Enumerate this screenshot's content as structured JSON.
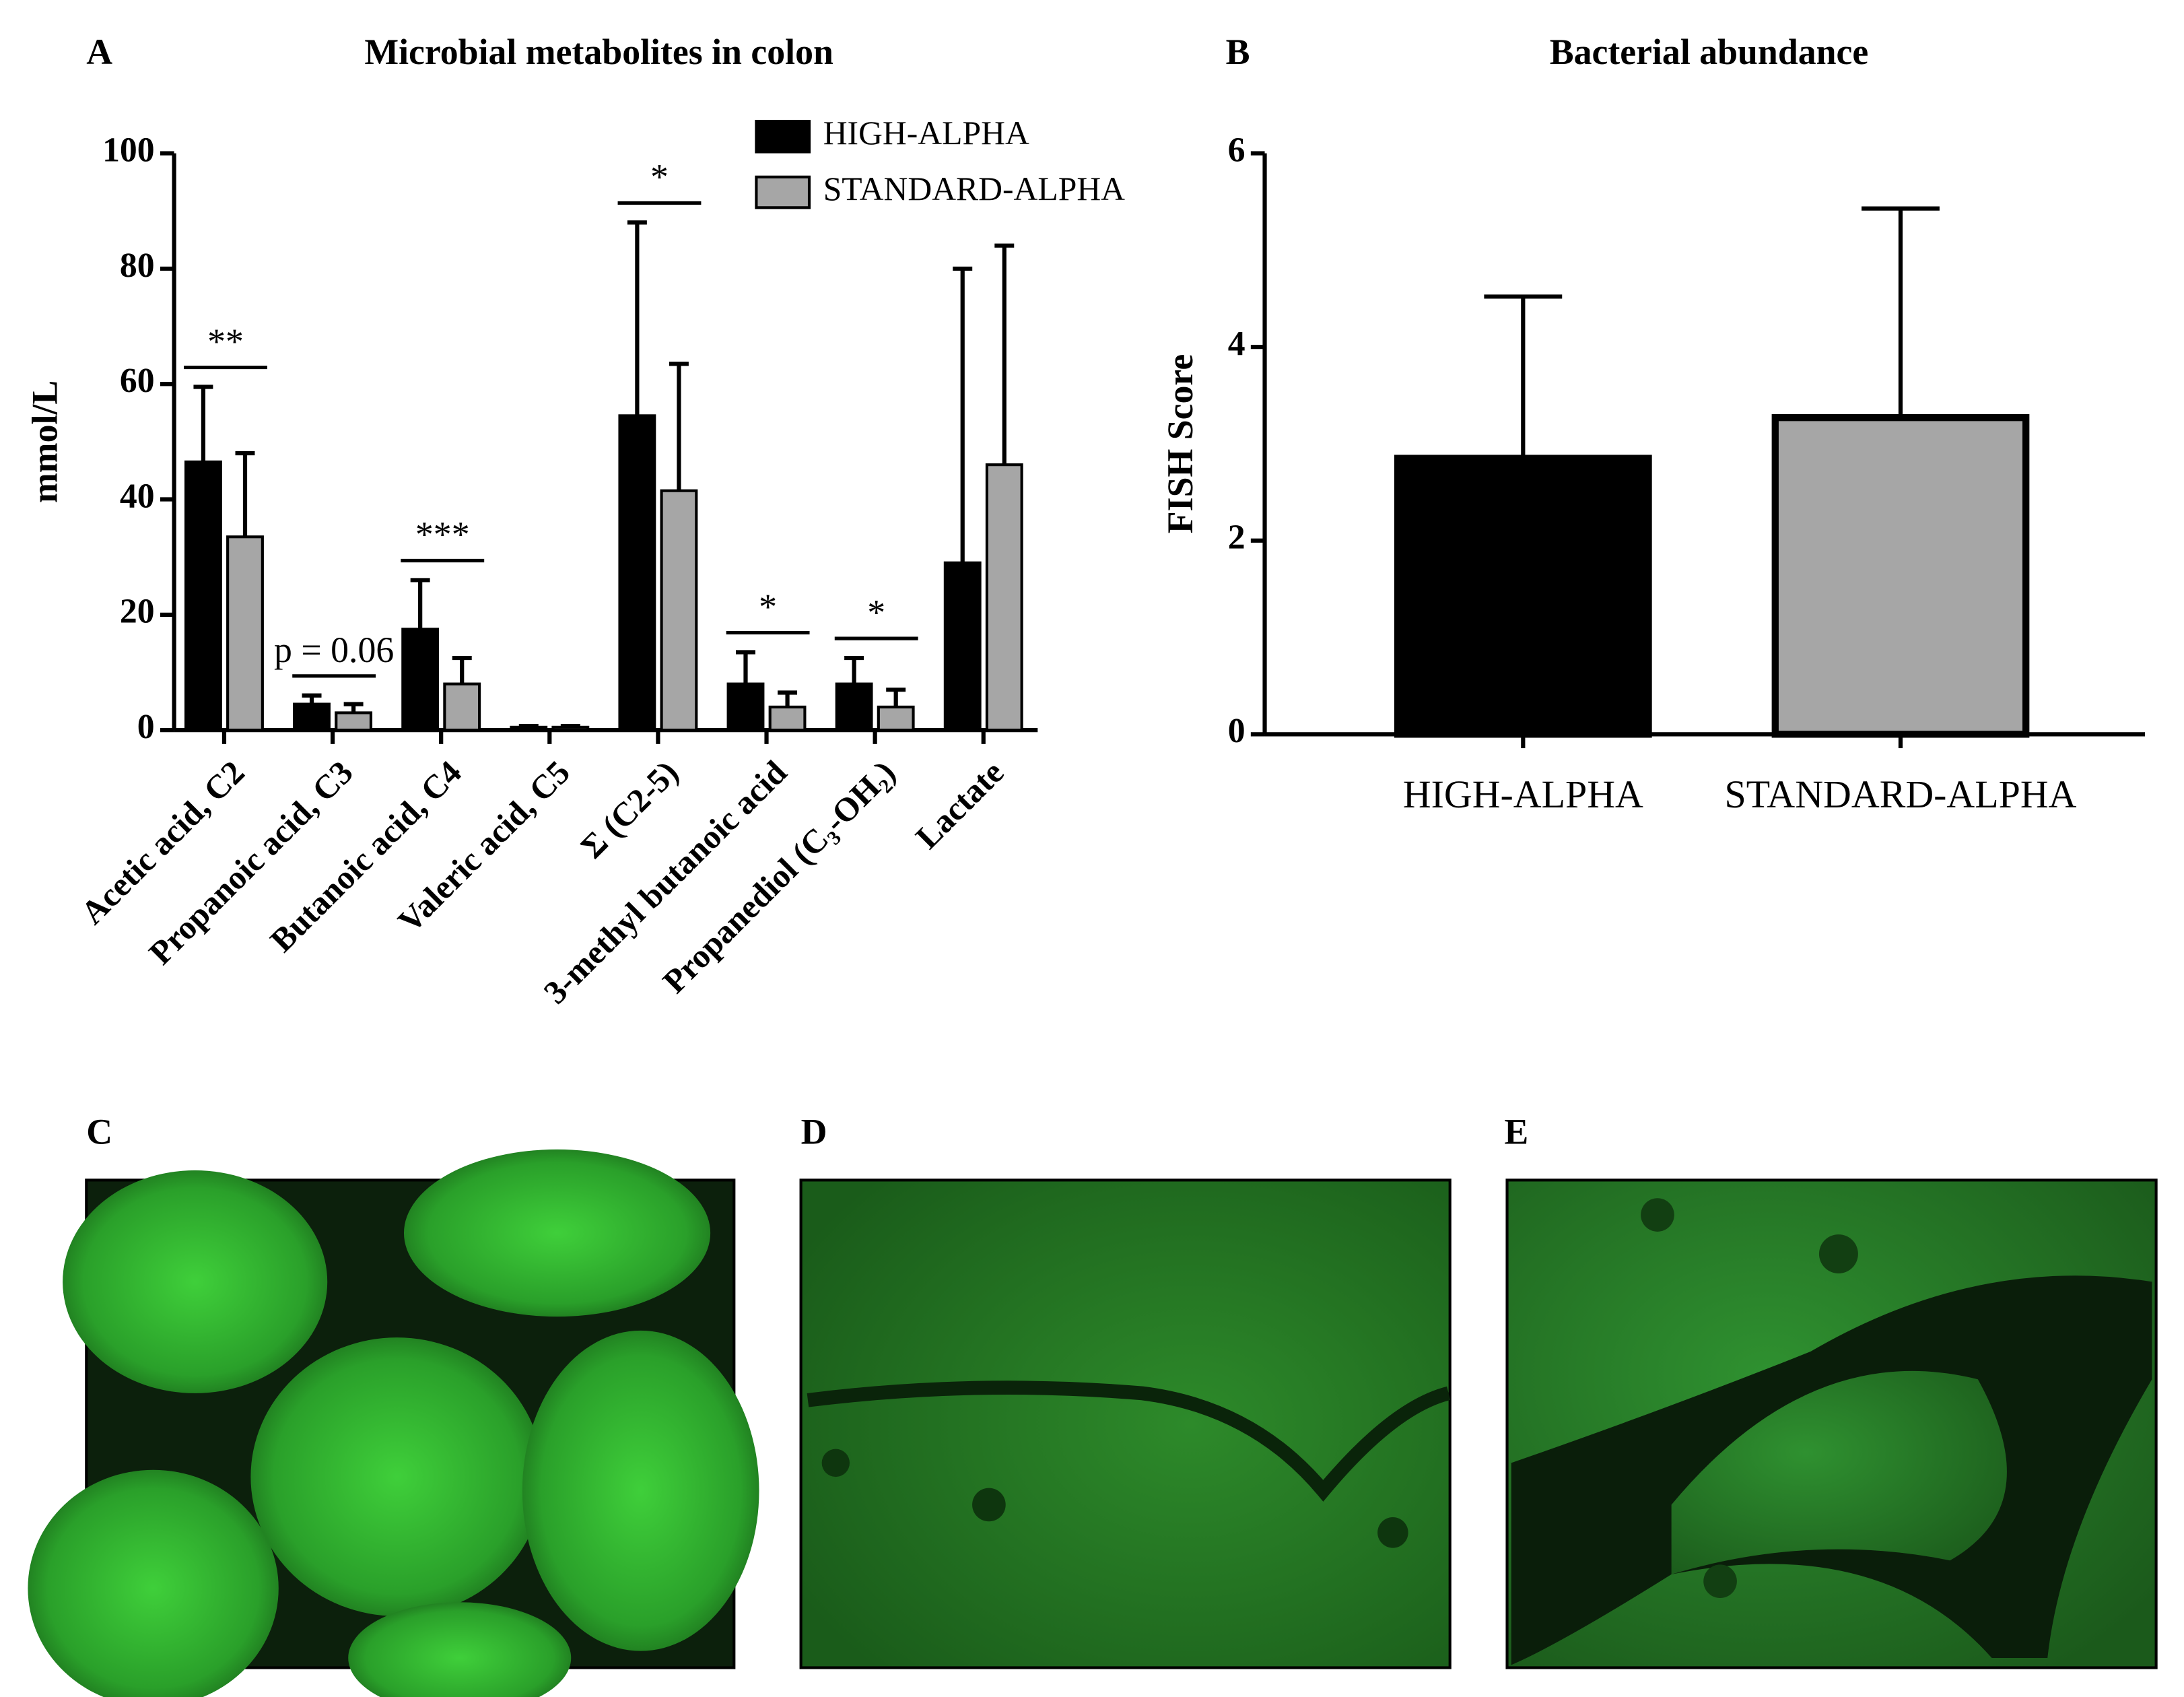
{
  "chart_data": [
    {
      "type": "bar",
      "panel": "A",
      "title": "Microbial metabolites in colon",
      "ylabel": "mmol/L",
      "categories": [
        "Acetic acid, C2",
        "Propanoic acid, C3",
        "Butanoic acid, C4",
        "Valeric acid, C5",
        "Σ (C2-5)",
        "3-methyl butanoic acid",
        "Propanediol (C₃-OH₂)",
        "Lactate"
      ],
      "series": [
        {
          "name": "HIGH-ALPHA",
          "color": "#000000",
          "values": [
            46.5,
            4.5,
            17.5,
            0.5,
            54.5,
            8,
            8,
            29
          ],
          "errors": [
            13,
            1.5,
            8.5,
            0.2,
            33.5,
            5.5,
            4.5,
            51
          ]
        },
        {
          "name": "STANDARD-ALPHA",
          "color": "#a6a6a6",
          "values": [
            33.5,
            3,
            8,
            0.5,
            41.5,
            4,
            4,
            46
          ],
          "errors": [
            14.5,
            1.5,
            4.5,
            0.2,
            22,
            2.5,
            3,
            38
          ]
        }
      ],
      "annotations": [
        "**",
        "p = 0.06",
        "***",
        "*",
        "*",
        "*"
      ],
      "ylim": [
        0,
        100
      ],
      "yticks": [
        0,
        20,
        40,
        60,
        80,
        100
      ]
    },
    {
      "type": "bar",
      "panel": "B",
      "title": "Bacterial abundance",
      "ylabel": "FISH Score",
      "categories": [
        "HIGH-ALPHA",
        "STANDARD-ALPHA"
      ],
      "values": [
        2.85,
        3.27
      ],
      "errors": [
        1.67,
        2.16
      ],
      "colors": [
        "#000000",
        "#a6a6a6"
      ],
      "ylim": [
        0,
        6
      ],
      "yticks": [
        0,
        2,
        4,
        6
      ]
    }
  ],
  "images": [
    {
      "panel": "C"
    },
    {
      "panel": "D"
    },
    {
      "panel": "E"
    }
  ]
}
